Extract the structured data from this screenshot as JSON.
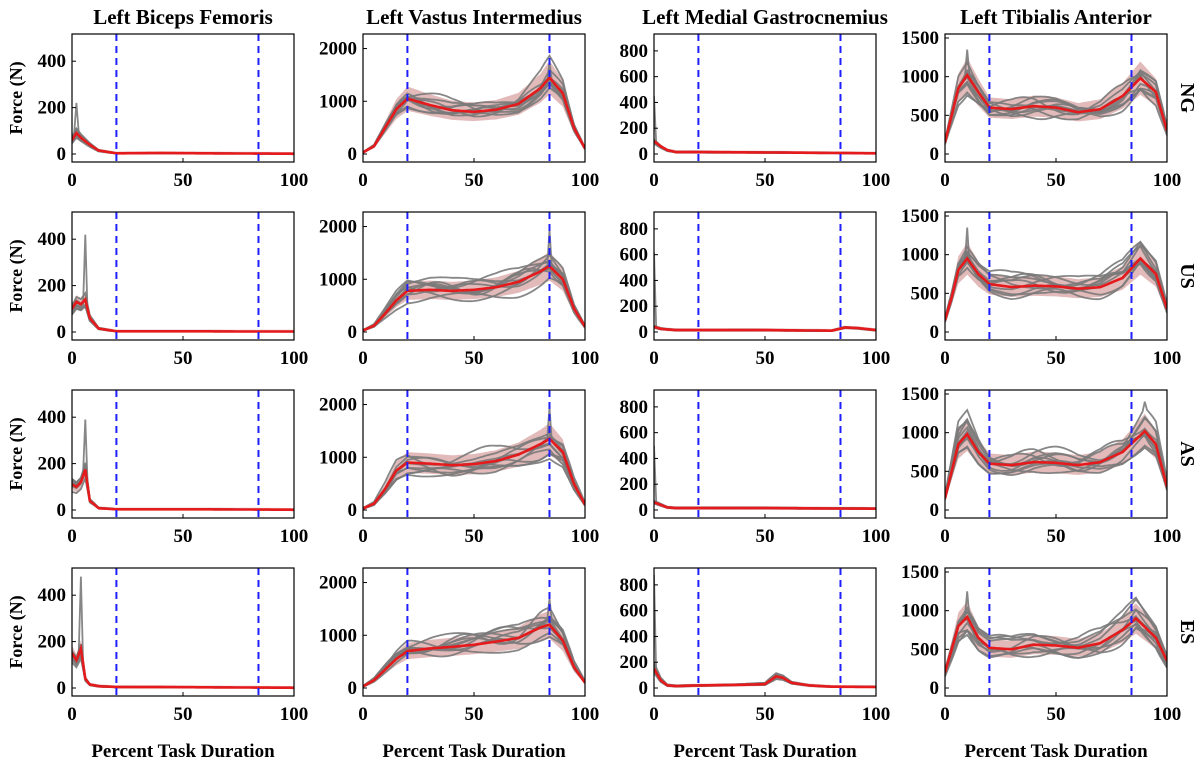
{
  "figure": {
    "columns": [
      "Left Biceps Femoris",
      "Left Vastus Intermedius",
      "Left Medial Gastrocnemius",
      "Left Tibialis Anterior"
    ],
    "rows": [
      "NG",
      "US",
      "AS",
      "ES"
    ],
    "ylabel": "Force (N)",
    "xlabel": "Percent Task Duration",
    "colors": {
      "subjects": "#7a7a7a",
      "mean": "#e41a1c",
      "band": "#d9a3a3",
      "phase_lines": "#1f1fff"
    }
  },
  "chart_data": {
    "type": "line",
    "xlim": [
      0,
      100
    ],
    "xticks": [
      0,
      50,
      100
    ],
    "phase_lines_x": [
      20,
      84
    ],
    "grid": false,
    "ylims": [
      [
        0,
        500
      ],
      [
        0,
        2200
      ],
      [
        0,
        900
      ],
      [
        0,
        1500
      ]
    ],
    "yticks": [
      [
        0,
        200,
        400
      ],
      [
        0,
        1000,
        2000
      ],
      [
        0,
        200,
        400,
        600,
        800
      ],
      [
        0,
        500,
        1000,
        1500
      ]
    ],
    "panels": [
      {
        "row": "NG",
        "column": "Left Biceps Femoris",
        "mean_x": [
          0,
          2,
          4,
          6,
          8,
          12,
          20,
          40,
          60,
          80,
          100
        ],
        "mean_y": [
          60,
          90,
          70,
          55,
          40,
          15,
          3,
          4,
          3,
          2,
          1
        ],
        "subject_peak": 220
      },
      {
        "row": "NG",
        "column": "Left Vastus Intermedius",
        "mean_x": [
          0,
          5,
          10,
          15,
          20,
          30,
          40,
          50,
          60,
          70,
          80,
          84,
          90,
          95,
          100
        ],
        "mean_y": [
          30,
          150,
          500,
          850,
          1050,
          930,
          830,
          800,
          840,
          950,
          1250,
          1450,
          1150,
          500,
          100
        ],
        "subject_peak": 1750
      },
      {
        "row": "NG",
        "column": "Left Medial Gastrocnemius",
        "mean_x": [
          0,
          3,
          6,
          10,
          20,
          50,
          80,
          100
        ],
        "mean_y": [
          100,
          60,
          30,
          15,
          15,
          12,
          8,
          5
        ],
        "subject_peak": 450
      },
      {
        "row": "NG",
        "column": "Left Tibialis Anterior",
        "mean_x": [
          0,
          3,
          6,
          10,
          15,
          20,
          30,
          40,
          50,
          60,
          70,
          80,
          88,
          95,
          100
        ],
        "mean_y": [
          150,
          500,
          850,
          1020,
          800,
          600,
          580,
          620,
          600,
          540,
          580,
          750,
          980,
          800,
          300
        ],
        "subject_peak": 1350
      },
      {
        "row": "US",
        "column": "Left Biceps Femoris",
        "mean_x": [
          0,
          2,
          4,
          6,
          8,
          12,
          20,
          40,
          60,
          80,
          100
        ],
        "mean_y": [
          100,
          130,
          120,
          140,
          60,
          15,
          3,
          3,
          3,
          2,
          2
        ],
        "subject_peak": 420
      },
      {
        "row": "US",
        "column": "Left Vastus Intermedius",
        "mean_x": [
          0,
          5,
          10,
          15,
          20,
          30,
          40,
          50,
          60,
          70,
          80,
          84,
          90,
          95,
          100
        ],
        "mean_y": [
          30,
          120,
          350,
          600,
          780,
          800,
          780,
          800,
          850,
          950,
          1150,
          1250,
          1000,
          450,
          100
        ],
        "subject_peak": 1950
      },
      {
        "row": "US",
        "column": "Left Medial Gastrocnemius",
        "mean_x": [
          0,
          3,
          6,
          10,
          20,
          50,
          80,
          86,
          92,
          100
        ],
        "mean_y": [
          40,
          25,
          20,
          15,
          15,
          15,
          10,
          35,
          30,
          15
        ],
        "subject_peak": 620
      },
      {
        "row": "US",
        "column": "Left Tibialis Anterior",
        "mean_x": [
          0,
          3,
          6,
          10,
          15,
          20,
          30,
          40,
          50,
          60,
          70,
          80,
          88,
          95,
          100
        ],
        "mean_y": [
          150,
          450,
          800,
          950,
          750,
          620,
          580,
          600,
          590,
          560,
          580,
          700,
          950,
          750,
          300
        ],
        "subject_peak": 1350
      },
      {
        "row": "AS",
        "column": "Left Biceps Femoris",
        "mean_x": [
          0,
          2,
          4,
          6,
          8,
          12,
          20,
          40,
          60,
          80,
          100
        ],
        "mean_y": [
          110,
          100,
          120,
          175,
          40,
          8,
          3,
          3,
          3,
          2,
          1
        ],
        "subject_peak": 390
      },
      {
        "row": "AS",
        "column": "Left Vastus Intermedius",
        "mean_x": [
          0,
          5,
          10,
          15,
          20,
          30,
          40,
          50,
          60,
          70,
          80,
          84,
          90,
          95,
          100
        ],
        "mean_y": [
          30,
          120,
          400,
          750,
          900,
          880,
          850,
          870,
          930,
          1050,
          1250,
          1350,
          1100,
          500,
          100
        ],
        "subject_peak": 1950
      },
      {
        "row": "AS",
        "column": "Left Medial Gastrocnemius",
        "mean_x": [
          0,
          3,
          6,
          10,
          20,
          50,
          80,
          100
        ],
        "mean_y": [
          60,
          40,
          20,
          15,
          15,
          15,
          12,
          10
        ],
        "subject_peak": 500
      },
      {
        "row": "AS",
        "column": "Left Tibialis Anterior",
        "mean_x": [
          0,
          3,
          6,
          10,
          15,
          20,
          30,
          40,
          50,
          60,
          70,
          80,
          90,
          95,
          100
        ],
        "mean_y": [
          150,
          500,
          850,
          980,
          750,
          600,
          580,
          620,
          610,
          580,
          620,
          750,
          1020,
          850,
          300
        ],
        "subject_peak": 1400
      },
      {
        "row": "ES",
        "column": "Left Biceps Femoris",
        "mean_x": [
          0,
          2,
          4,
          6,
          8,
          12,
          20,
          40,
          60,
          80,
          100
        ],
        "mean_y": [
          150,
          120,
          170,
          40,
          15,
          8,
          4,
          4,
          3,
          2,
          1
        ],
        "subject_peak": 480
      },
      {
        "row": "ES",
        "column": "Left Vastus Intermedius",
        "mean_x": [
          0,
          5,
          10,
          15,
          20,
          30,
          40,
          50,
          60,
          70,
          80,
          84,
          90,
          95,
          100
        ],
        "mean_y": [
          30,
          150,
          350,
          550,
          700,
          750,
          780,
          820,
          880,
          950,
          1150,
          1200,
          900,
          400,
          100
        ],
        "subject_peak": 1700
      },
      {
        "row": "ES",
        "column": "Left Medial Gastrocnemius",
        "mean_x": [
          0,
          3,
          6,
          10,
          20,
          40,
          50,
          55,
          58,
          62,
          70,
          80,
          100
        ],
        "mean_y": [
          150,
          60,
          20,
          15,
          20,
          25,
          30,
          90,
          80,
          40,
          20,
          10,
          8
        ],
        "subject_peak": 880
      },
      {
        "row": "ES",
        "column": "Left Tibialis Anterior",
        "mean_x": [
          0,
          3,
          6,
          10,
          15,
          20,
          30,
          40,
          50,
          60,
          70,
          80,
          86,
          95,
          100
        ],
        "mean_y": [
          200,
          500,
          800,
          920,
          650,
          520,
          500,
          560,
          550,
          520,
          580,
          750,
          900,
          650,
          350
        ],
        "subject_peak": 1250
      }
    ]
  }
}
